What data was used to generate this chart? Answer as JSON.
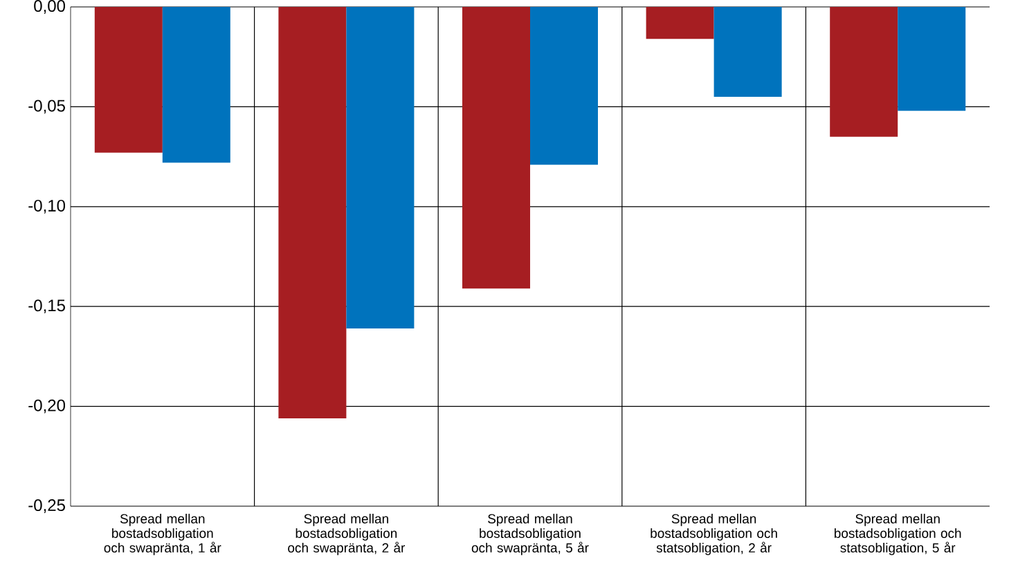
{
  "chart_data": {
    "type": "bar",
    "categories": [
      "Spread mellan bostadsobligation och swapränta, 1 år",
      "Spread mellan bostadsobligation och swapränta, 2 år",
      "Spread mellan bostadsobligation och swapränta, 5 år",
      "Spread mellan bostadsobligation och statsobligation, 2 år",
      "Spread mellan bostadsobligation och statsobligation, 5 år"
    ],
    "series": [
      {
        "color": "#a61e22",
        "values": [
          -0.073,
          -0.206,
          -0.141,
          -0.016,
          -0.065
        ]
      },
      {
        "color": "#0073bd",
        "values": [
          -0.078,
          -0.161,
          -0.079,
          -0.045,
          -0.052
        ]
      }
    ],
    "ylim": [
      -0.25,
      0
    ],
    "yticks": [
      {
        "value": -0.25,
        "label": "-0,25"
      },
      {
        "value": -0.2,
        "label": "-0,20"
      },
      {
        "value": -0.15,
        "label": "-0,15"
      },
      {
        "value": -0.1,
        "label": "-0,10"
      },
      {
        "value": -0.05,
        "label": "-0,05"
      },
      {
        "value": 0,
        "label": "0,00"
      }
    ],
    "grid": true
  }
}
